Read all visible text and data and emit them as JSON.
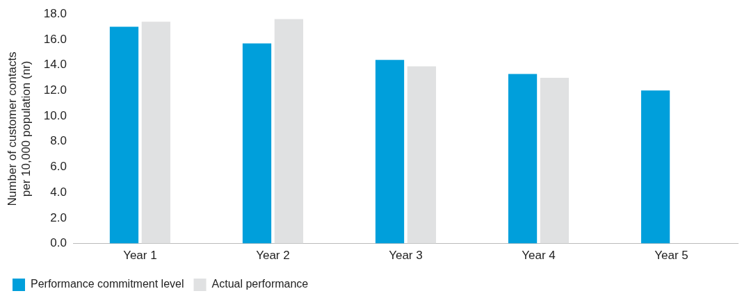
{
  "chart_data": {
    "type": "bar",
    "ylabel": "Number of customer contacts per 10,000 population (nr)",
    "categories": [
      "Year 1",
      "Year 2",
      "Year 3",
      "Year 4",
      "Year 5"
    ],
    "series": [
      {
        "name": "Performance commitment level",
        "color": "#009fdb",
        "values": [
          17.0,
          15.7,
          14.4,
          13.3,
          12.0
        ]
      },
      {
        "name": "Actual performance",
        "color": "#e0e1e2",
        "values": [
          17.4,
          17.6,
          13.9,
          13.0,
          null
        ]
      }
    ],
    "ylim": [
      0,
      18
    ],
    "yticks": [
      {
        "value": 0,
        "label": "0.0"
      },
      {
        "value": 2,
        "label": "2.0"
      },
      {
        "value": 4,
        "label": "4.0"
      },
      {
        "value": 6,
        "label": "6.0"
      },
      {
        "value": 8,
        "label": "8.0"
      },
      {
        "value": 10,
        "label": "10.0"
      },
      {
        "value": 12,
        "label": "12.0"
      },
      {
        "value": 14,
        "label": "14.0"
      },
      {
        "value": 16,
        "label": "16.0"
      },
      {
        "value": 18,
        "label": "18.0"
      }
    ],
    "grid": false,
    "legend": "bottom left"
  }
}
